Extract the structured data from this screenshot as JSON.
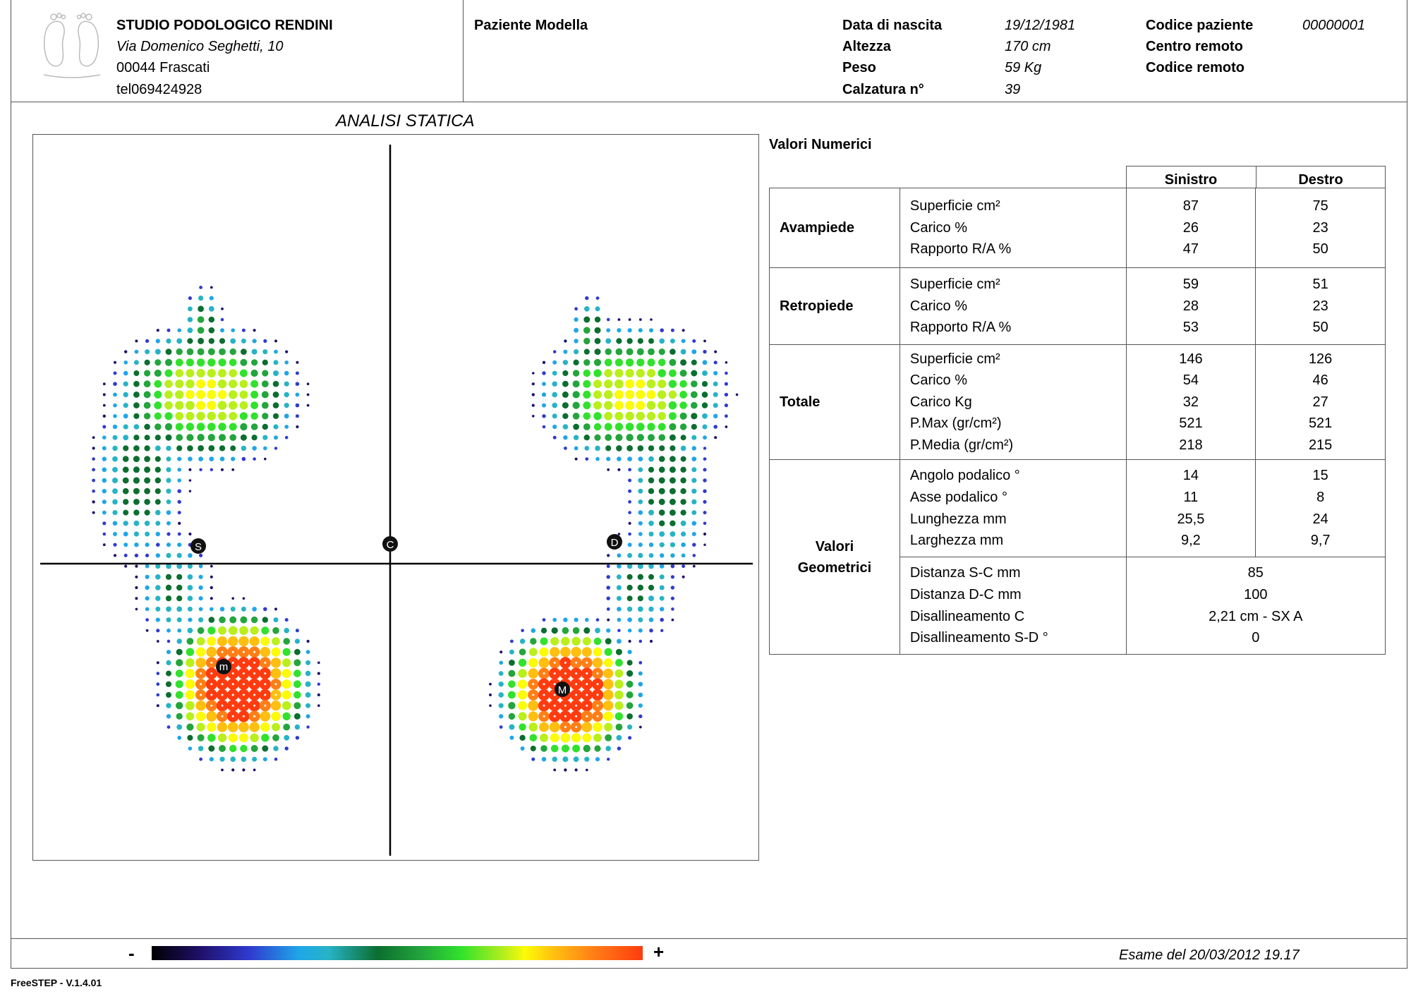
{
  "studio": {
    "name": "STUDIO PODOLOGICO RENDINI",
    "address": "Via Domenico Seghetti, 10",
    "city": "00044 Frascati",
    "phone": "tel069424928"
  },
  "patient": {
    "name": "Paziente Modella",
    "birth_label": "Data di nascita",
    "birth_value": "19/12/1981",
    "height_label": "Altezza",
    "height_value": "170 cm",
    "weight_label": "Peso",
    "weight_value": "59 Kg",
    "shoe_label": "Calzatura n°",
    "shoe_value": "39",
    "code_label": "Codice paziente",
    "code_value": "00000001",
    "remote_center_label": "Centro remoto",
    "remote_code_label": "Codice remoto"
  },
  "analysis": {
    "title": "ANALISI STATICA",
    "markers": {
      "s": "S",
      "c": "C",
      "d": "D",
      "m_left": "m",
      "m_right": "M"
    }
  },
  "values": {
    "title": "Valori Numerici",
    "col_left": "Sinistro",
    "col_right": "Destro",
    "groups": [
      {
        "label": "Avampiede",
        "rows": [
          {
            "metric": "Superficie cm²",
            "left": "87",
            "right": "75"
          },
          {
            "metric": "Carico %",
            "left": "26",
            "right": "23"
          },
          {
            "metric": "Rapporto R/A %",
            "left": "47",
            "right": "50"
          }
        ]
      },
      {
        "label": "Retropiede",
        "rows": [
          {
            "metric": "Superficie cm²",
            "left": "59",
            "right": "51"
          },
          {
            "metric": "Carico %",
            "left": "28",
            "right": "23"
          },
          {
            "metric": "Rapporto R/A %",
            "left": "53",
            "right": "50"
          }
        ]
      },
      {
        "label": "Totale",
        "rows": [
          {
            "metric": "Superficie cm²",
            "left": "146",
            "right": "126"
          },
          {
            "metric": "Carico %",
            "left": "54",
            "right": "46"
          },
          {
            "metric": "Carico Kg",
            "left": "32",
            "right": "27"
          },
          {
            "metric": "P.Max (gr/cm²)",
            "left": "521",
            "right": "521"
          },
          {
            "metric": "P.Media (gr/cm²)",
            "left": "218",
            "right": "215"
          }
        ]
      }
    ],
    "geom_label_1": "Valori",
    "geom_label_2": "Geometrici",
    "geom_rows": [
      {
        "metric": "Angolo podalico °",
        "left": "14",
        "right": "15"
      },
      {
        "metric": "Asse podalico °",
        "left": "11",
        "right": "8"
      },
      {
        "metric": "Lunghezza mm",
        "left": "25,5",
        "right": "24"
      },
      {
        "metric": "Larghezza mm",
        "left": "9,2",
        "right": "9,7"
      }
    ],
    "geom_merged_rows": [
      {
        "metric": "Distanza S-C mm",
        "value": "85"
      },
      {
        "metric": "Distanza D-C mm",
        "value": "100"
      },
      {
        "metric": "Disallineamento C",
        "value": "2,21 cm - SX A"
      },
      {
        "metric": "Disallineamento S-D °",
        "value": "0"
      }
    ]
  },
  "legend": {
    "minus": "-",
    "plus": "+"
  },
  "exam": "Esame del 20/03/2012 19.17",
  "version": "FreeSTEP - V.1.4.01",
  "colors": {
    "scale": [
      "#20106a",
      "#2f3bd0",
      "#1fa6e8",
      "#27b3c6",
      "#0b6e2f",
      "#23a53c",
      "#31e22c",
      "#b9ef1b",
      "#fcfb08",
      "#ffbf10",
      "#ff7f16",
      "#ff3b0f"
    ]
  }
}
